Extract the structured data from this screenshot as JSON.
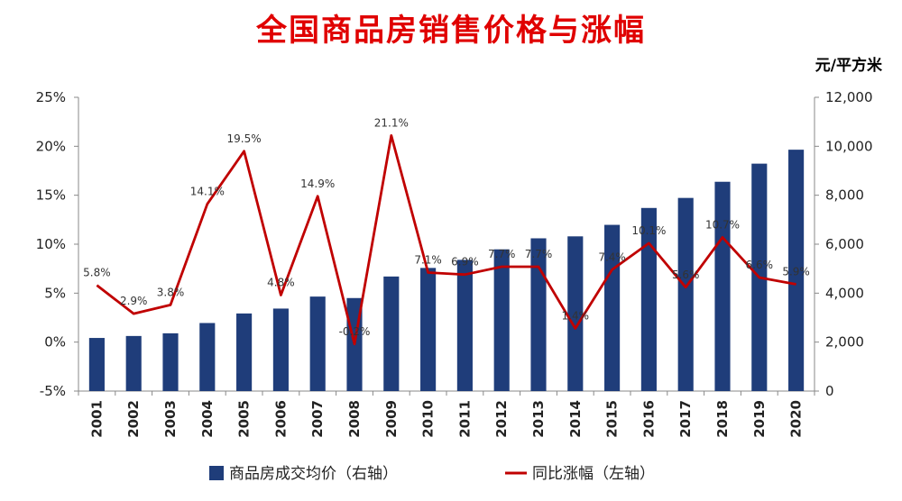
{
  "chart_data": {
    "type": "bar+line",
    "title": "全国商品房销售价格与涨幅",
    "unit_right": "元/平方米",
    "categories": [
      "2001",
      "2002",
      "2003",
      "2004",
      "2005",
      "2006",
      "2007",
      "2008",
      "2009",
      "2010",
      "2011",
      "2012",
      "2013",
      "2014",
      "2015",
      "2016",
      "2017",
      "2018",
      "2019",
      "2020"
    ],
    "series": [
      {
        "name": "商品房成交均价（右轴）",
        "type": "bar",
        "axis": "right",
        "color": "#1f3d7a",
        "values": [
          2170,
          2250,
          2360,
          2780,
          3170,
          3370,
          3860,
          3800,
          4680,
          5030,
          5360,
          5790,
          6240,
          6320,
          6790,
          7480,
          7890,
          8550,
          9290,
          9860
        ]
      },
      {
        "name": "同比涨幅（左轴）",
        "type": "line",
        "axis": "left",
        "color": "#c00000",
        "values": [
          5.8,
          2.9,
          3.8,
          14.1,
          19.5,
          4.8,
          14.9,
          -0.2,
          21.1,
          7.1,
          6.9,
          7.7,
          7.7,
          1.4,
          7.4,
          10.1,
          5.6,
          10.7,
          6.6,
          5.9
        ],
        "data_labels": [
          "5.8%",
          "2.9%",
          "3.8%",
          "14.1%",
          "19.5%",
          "4.8%",
          "14.9%",
          "-0.2%",
          "21.1%",
          "7.1%",
          "6.9%",
          "7.7%",
          "7.7%",
          "1.4%",
          "7.4%",
          "10.1%",
          "5.6%",
          "10.7%",
          "6.6%",
          "5.9%"
        ]
      }
    ],
    "left_axis": {
      "ylim": [
        -5,
        25
      ],
      "ticks": [
        -5,
        0,
        5,
        10,
        15,
        20,
        25
      ],
      "tick_labels": [
        "-5%",
        "0%",
        "5%",
        "10%",
        "15%",
        "20%",
        "25%"
      ]
    },
    "right_axis": {
      "ylim": [
        0,
        12000
      ],
      "ticks": [
        0,
        2000,
        4000,
        6000,
        8000,
        10000,
        12000
      ],
      "tick_labels": [
        "0",
        "2,000",
        "4,000",
        "6,000",
        "8,000",
        "10,000",
        "12,000"
      ]
    },
    "grid": false,
    "legend": {
      "position": "bottom",
      "items": [
        "商品房成交均价（右轴）",
        "同比涨幅（左轴）"
      ]
    }
  }
}
